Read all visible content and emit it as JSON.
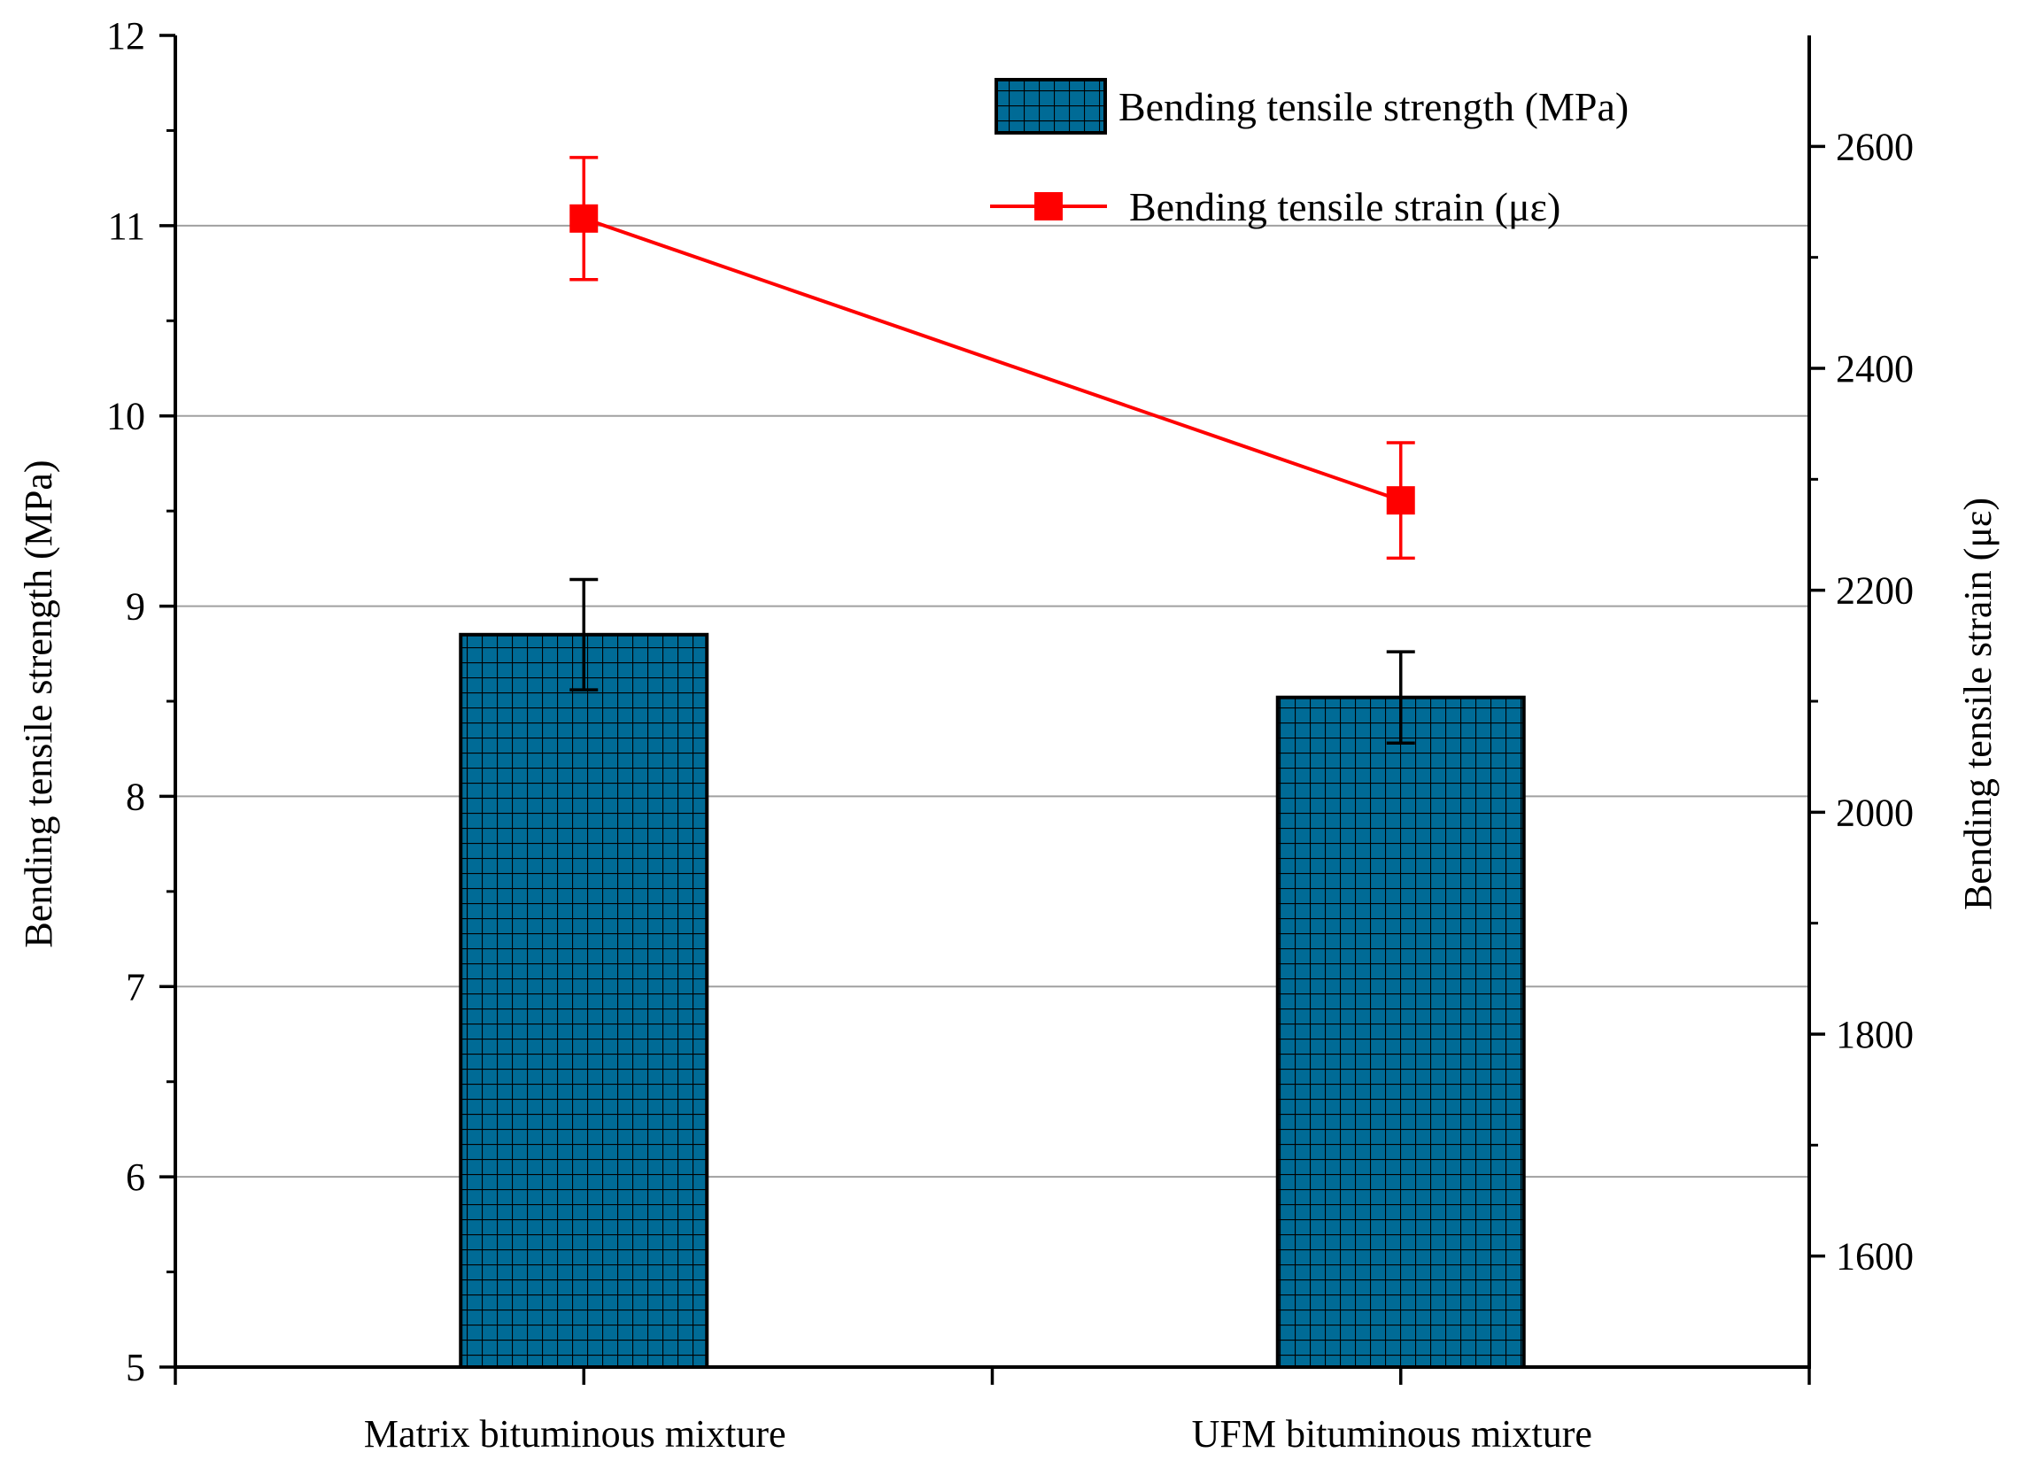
{
  "chart_data": {
    "type": "bar",
    "categories": [
      "Matrix bituminous mixture",
      "UFM bituminous mixture"
    ],
    "series": [
      {
        "name": "Bending tensile strength (MPa)",
        "type": "bar",
        "axis": "left",
        "values": [
          8.85,
          8.52
        ],
        "errors": [
          0.29,
          0.24
        ],
        "color": "#006b96",
        "pattern": "grid"
      },
      {
        "name": "Bending tensile strain (με)",
        "type": "line",
        "axis": "right",
        "values": [
          2535,
          2281
        ],
        "errors": [
          55,
          52
        ],
        "color": "#ff0000",
        "marker": "square"
      }
    ],
    "y_left": {
      "label": "Bending tensile strength (MPa)",
      "range": [
        5,
        12
      ],
      "ticks": [
        "5",
        "6",
        "7",
        "8",
        "9",
        "10",
        "11",
        "12"
      ]
    },
    "y_right": {
      "label": "Bending tensile strain (με)",
      "range": [
        1500,
        2700
      ],
      "ticks": [
        "1600",
        "1800",
        "2000",
        "2200",
        "2400",
        "2600"
      ]
    },
    "grid": "horizontal",
    "legend_position": "top-right"
  }
}
